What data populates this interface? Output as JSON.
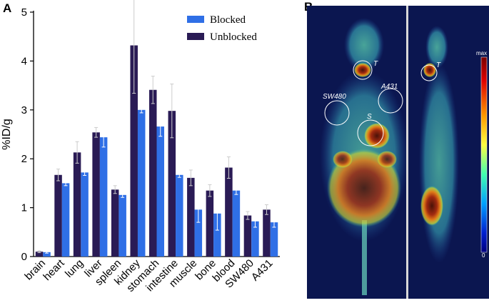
{
  "panels": {
    "a": "A",
    "b": "B"
  },
  "colors": {
    "blocked": "#2f6fe6",
    "unblocked": "#2a1b55",
    "scan_bg": "#0b1650"
  },
  "chart_data": {
    "type": "bar",
    "ylabel": "%ID/g",
    "xlabel": "",
    "ylim": [
      0,
      5
    ],
    "yticks": [
      "0",
      "1",
      "2",
      "3",
      "4",
      "5"
    ],
    "legend_position": "top-right",
    "categories": [
      "brain",
      "heart",
      "lung",
      "liver",
      "spleen",
      "kidney",
      "stomach",
      "intestine",
      "muscle",
      "bone",
      "blood",
      "SW480",
      "A431"
    ],
    "series": [
      {
        "name": "Unblocked",
        "color": "#2a1b55",
        "values": [
          0.1,
          1.67,
          2.13,
          2.54,
          1.37,
          4.32,
          3.41,
          2.98,
          1.61,
          1.35,
          1.82,
          0.84,
          0.96
        ],
        "errors": [
          0.02,
          0.12,
          0.22,
          0.1,
          0.08,
          0.98,
          0.28,
          0.55,
          0.16,
          0.12,
          0.22,
          0.08,
          0.1
        ]
      },
      {
        "name": "Blocked",
        "color": "#2f6fe6",
        "values": [
          0.09,
          1.5,
          1.72,
          2.44,
          1.26,
          3.0,
          2.66,
          1.67,
          0.96,
          0.88,
          1.35,
          0.72,
          0.7
        ],
        "errors": [
          0.02,
          0.05,
          0.06,
          0.2,
          0.05,
          0.06,
          0.2,
          0.05,
          0.26,
          0.34,
          0.08,
          0.12,
          0.1
        ]
      }
    ]
  },
  "scan": {
    "labels": {
      "t1": "T",
      "sw480": "SW480",
      "a431": "A431",
      "s": "S",
      "t2": "T"
    },
    "colorbar": {
      "max": "max",
      "min": "0"
    }
  }
}
